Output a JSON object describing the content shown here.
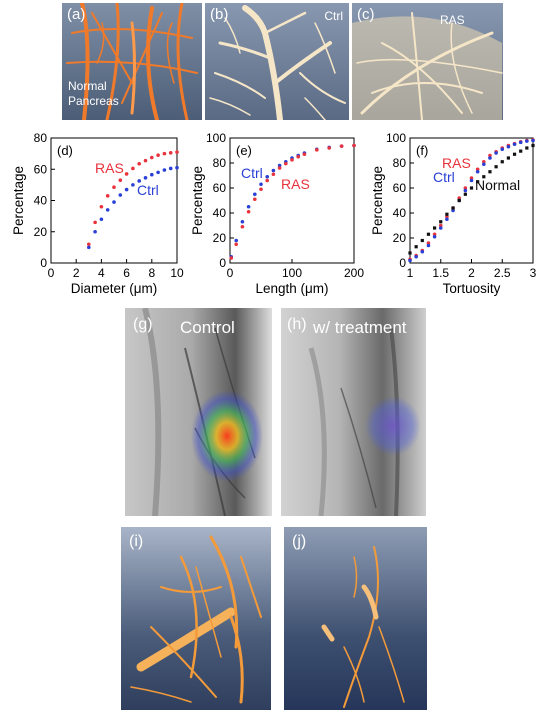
{
  "top_panels": {
    "a": {
      "label": "(a)",
      "caption": "Normal Pancreas"
    },
    "b": {
      "label": "(b)",
      "caption": "Ctrl"
    },
    "c": {
      "label": "(c)",
      "caption": "RAS"
    }
  },
  "mid_panels": {
    "g": {
      "label": "(g)",
      "caption": "Control"
    },
    "h": {
      "label": "(h)",
      "caption": "w/ treatment"
    }
  },
  "bottom_panels": {
    "i": {
      "label": "(i)"
    },
    "j": {
      "label": "(j)"
    }
  },
  "colors": {
    "ras": "#e8323c",
    "ctrl": "#2a3fd6",
    "normal": "#111111"
  },
  "chart_data": [
    {
      "id": "d",
      "panel_label": "(d)",
      "type": "scatter",
      "xlabel": "Diameter (μm)",
      "ylabel": "Percentage",
      "xlim": [
        0,
        10
      ],
      "ylim": [
        0,
        80
      ],
      "xticks": [
        0,
        2,
        4,
        6,
        8,
        10
      ],
      "yticks": [
        0,
        20,
        40,
        60,
        80
      ],
      "series": [
        {
          "name": "RAS",
          "color": "#e8323c",
          "x": [
            3.0,
            3.5,
            4.0,
            4.5,
            5.0,
            5.5,
            6.0,
            6.5,
            7.0,
            7.5,
            8.0,
            8.5,
            9.0,
            9.5,
            10.0
          ],
          "y": [
            12,
            26,
            36,
            43,
            48.5,
            53,
            57,
            60.5,
            63.5,
            65.5,
            67.5,
            69,
            70,
            70.5,
            71
          ]
        },
        {
          "name": "Ctrl",
          "color": "#2a3fd6",
          "x": [
            3.0,
            3.5,
            4.0,
            4.5,
            5.0,
            5.5,
            6.0,
            6.5,
            7.0,
            7.5,
            8.0,
            8.5,
            9.0,
            9.5,
            10.0
          ],
          "y": [
            10,
            20,
            28,
            34,
            39,
            43.5,
            47,
            50,
            52.5,
            54.5,
            56.5,
            58,
            59.5,
            60.5,
            61
          ]
        }
      ]
    },
    {
      "id": "e",
      "panel_label": "(e)",
      "type": "scatter",
      "xlabel": "Length (μm)",
      "ylabel": "Percentage",
      "xlim": [
        0,
        200
      ],
      "ylim": [
        0,
        100
      ],
      "xticks": [
        0,
        100,
        200
      ],
      "yticks": [
        0,
        20,
        40,
        60,
        80,
        100
      ],
      "series": [
        {
          "name": "Ctrl",
          "color": "#2a3fd6",
          "x": [
            2,
            10,
            20,
            30,
            40,
            50,
            60,
            70,
            80,
            90,
            100,
            110,
            120,
            140,
            160,
            180,
            200
          ],
          "y": [
            5,
            18,
            33,
            45,
            55,
            63,
            69,
            74,
            78,
            81,
            84,
            86,
            88,
            91,
            92.5,
            93.5,
            94
          ]
        },
        {
          "name": "RAS",
          "color": "#e8323c",
          "x": [
            2,
            10,
            20,
            30,
            40,
            50,
            60,
            70,
            80,
            90,
            100,
            110,
            120,
            140,
            160,
            180,
            200
          ],
          "y": [
            4,
            15,
            29,
            41,
            51,
            59,
            66,
            71,
            76,
            79.5,
            82.5,
            85,
            87,
            90.5,
            92,
            93.5,
            94
          ]
        }
      ]
    },
    {
      "id": "f",
      "panel_label": "(f)",
      "type": "scatter",
      "xlabel": "Tortuosity",
      "ylabel": "Percentage",
      "xlim": [
        1,
        3
      ],
      "ylim": [
        0,
        100
      ],
      "xticks": [
        1,
        1.5,
        2,
        2.5,
        3
      ],
      "yticks": [
        0,
        20,
        40,
        60,
        80,
        100
      ],
      "series": [
        {
          "name": "RAS",
          "color": "#e8323c",
          "x": [
            1.0,
            1.1,
            1.2,
            1.3,
            1.4,
            1.5,
            1.6,
            1.7,
            1.8,
            1.9,
            2.0,
            2.1,
            2.2,
            2.3,
            2.4,
            2.5,
            2.6,
            2.7,
            2.8,
            2.9,
            3.0
          ],
          "y": [
            3,
            6,
            10,
            16,
            23,
            30,
            37,
            44,
            52,
            60,
            68,
            75,
            81,
            86,
            89,
            92,
            94,
            95.5,
            97,
            98,
            98.5
          ]
        },
        {
          "name": "Ctrl",
          "color": "#2a3fd6",
          "x": [
            1.0,
            1.1,
            1.2,
            1.3,
            1.4,
            1.5,
            1.6,
            1.7,
            1.8,
            1.9,
            2.0,
            2.1,
            2.2,
            2.3,
            2.4,
            2.5,
            2.6,
            2.7,
            2.8,
            2.9,
            3.0
          ],
          "y": [
            2,
            5,
            9,
            14,
            21,
            28,
            35,
            42,
            50,
            58,
            66,
            73,
            79,
            84,
            88,
            91,
            93,
            95,
            96.5,
            97.5,
            98
          ]
        },
        {
          "name": "Normal",
          "color": "#111111",
          "x": [
            1.0,
            1.1,
            1.2,
            1.3,
            1.4,
            1.5,
            1.6,
            1.7,
            1.8,
            1.9,
            2.0,
            2.1,
            2.2,
            2.3,
            2.4,
            2.5,
            2.6,
            2.7,
            2.8,
            2.9,
            3.0
          ],
          "y": [
            8,
            13,
            18,
            23,
            28,
            33,
            39,
            44,
            50,
            55,
            60,
            65,
            69,
            73,
            77,
            81,
            84,
            87,
            89.5,
            92,
            94
          ]
        }
      ]
    }
  ]
}
